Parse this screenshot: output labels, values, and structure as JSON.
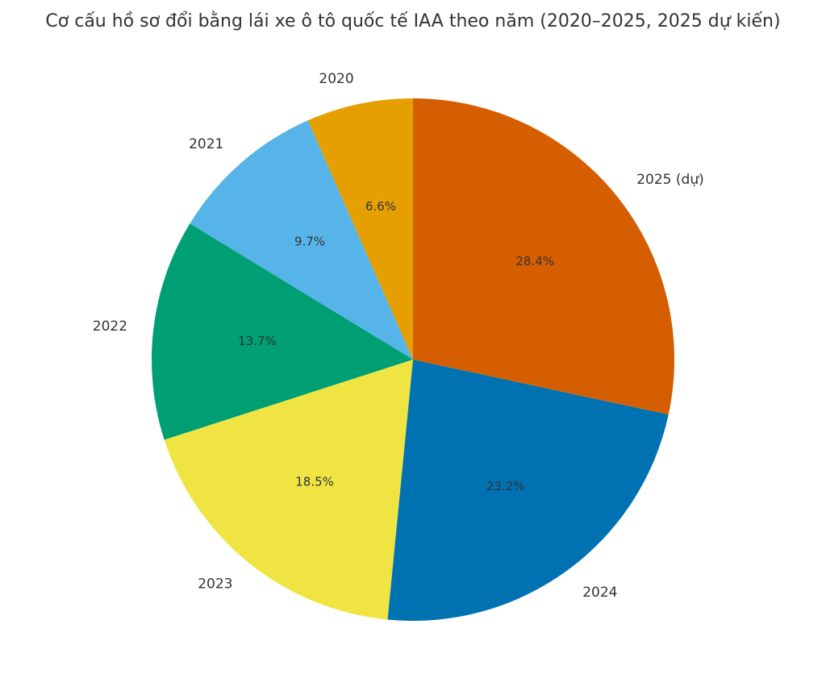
{
  "chart_data": {
    "type": "pie",
    "title": "Cơ cấu hồ sơ đổi bằng lái xe ô tô quốc tế IAA theo năm (2020–2025, 2025 dự kiến)",
    "categories": [
      "2020",
      "2021",
      "2022",
      "2023",
      "2024",
      "2025 (dự)"
    ],
    "values": [
      6.6,
      9.7,
      13.7,
      18.5,
      23.2,
      28.4
    ],
    "value_labels": [
      "6.6%",
      "9.7%",
      "13.7%",
      "18.5%",
      "23.2%",
      "28.4%"
    ],
    "colors": [
      "#E69F00",
      "#56B4E9",
      "#009E73",
      "#F0E442",
      "#0072B2",
      "#D55E00"
    ],
    "start_angle_deg": 90,
    "direction": "counterclockwise"
  }
}
